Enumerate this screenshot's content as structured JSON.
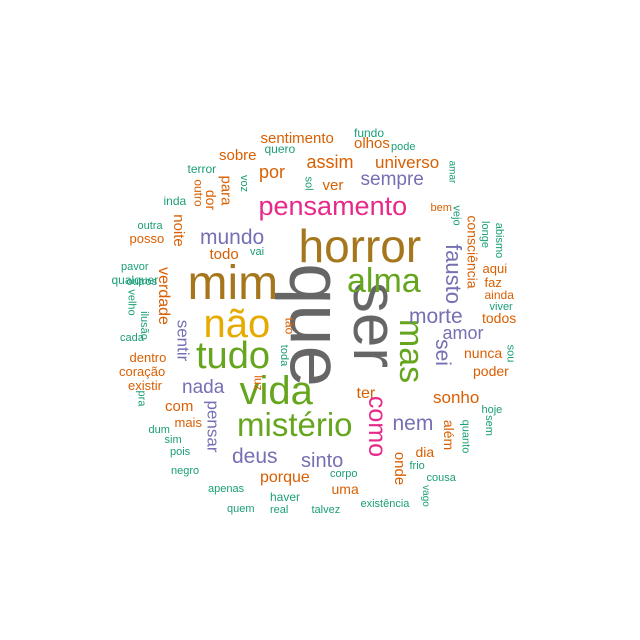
{
  "palette": {
    "teal": "#1b9e77",
    "orange": "#d95f02",
    "purple": "#7570b3",
    "magenta": "#e7298a",
    "green": "#66a61e",
    "gold": "#e6ab02",
    "brown": "#a6761d",
    "gray": "#666666"
  },
  "words": [
    {
      "text": "que",
      "color": "gray"
    },
    {
      "text": "ser",
      "color": "gray"
    },
    {
      "text": "horror",
      "color": "brown"
    },
    {
      "text": "mim",
      "color": "brown"
    },
    {
      "text": "não",
      "color": "gold"
    },
    {
      "text": "vida",
      "color": "green"
    },
    {
      "text": "tudo",
      "color": "green"
    },
    {
      "text": "alma",
      "color": "green"
    },
    {
      "text": "mistério",
      "color": "green"
    },
    {
      "text": "mas",
      "color": "green"
    },
    {
      "text": "pensamento",
      "color": "magenta"
    },
    {
      "text": "como",
      "color": "magenta"
    },
    {
      "text": "mundo",
      "color": "purple"
    },
    {
      "text": "fausto",
      "color": "purple"
    },
    {
      "text": "morte",
      "color": "purple"
    },
    {
      "text": "sei",
      "color": "purple"
    },
    {
      "text": "nada",
      "color": "purple"
    },
    {
      "text": "deus",
      "color": "purple"
    },
    {
      "text": "sinto",
      "color": "purple"
    },
    {
      "text": "nem",
      "color": "purple"
    },
    {
      "text": "sempre",
      "color": "purple"
    },
    {
      "text": "amor",
      "color": "purple"
    },
    {
      "text": "sentir",
      "color": "purple"
    },
    {
      "text": "pensar",
      "color": "purple"
    },
    {
      "text": "por",
      "color": "orange"
    },
    {
      "text": "assim",
      "color": "orange"
    },
    {
      "text": "universo",
      "color": "orange"
    },
    {
      "text": "sentimento",
      "color": "orange"
    },
    {
      "text": "olhos",
      "color": "orange"
    },
    {
      "text": "sobre",
      "color": "orange"
    },
    {
      "text": "ver",
      "color": "orange"
    },
    {
      "text": "para",
      "color": "orange"
    },
    {
      "text": "dor",
      "color": "orange"
    },
    {
      "text": "outro",
      "color": "orange"
    },
    {
      "text": "noite",
      "color": "orange"
    },
    {
      "text": "todo",
      "color": "orange"
    },
    {
      "text": "posso",
      "color": "orange"
    },
    {
      "text": "verdade",
      "color": "orange"
    },
    {
      "text": "dentro",
      "color": "orange"
    },
    {
      "text": "coração",
      "color": "orange"
    },
    {
      "text": "existir",
      "color": "orange"
    },
    {
      "text": "com",
      "color": "orange"
    },
    {
      "text": "mais",
      "color": "orange"
    },
    {
      "text": "luz",
      "color": "orange"
    },
    {
      "text": "tão",
      "color": "orange"
    },
    {
      "text": "ter",
      "color": "orange"
    },
    {
      "text": "sonho",
      "color": "orange"
    },
    {
      "text": "porque",
      "color": "orange"
    },
    {
      "text": "uma",
      "color": "orange"
    },
    {
      "text": "onde",
      "color": "orange"
    },
    {
      "text": "dia",
      "color": "orange"
    },
    {
      "text": "além",
      "color": "orange"
    },
    {
      "text": "nunca",
      "color": "orange"
    },
    {
      "text": "poder",
      "color": "orange"
    },
    {
      "text": "aqui",
      "color": "orange"
    },
    {
      "text": "faz",
      "color": "orange"
    },
    {
      "text": "ainda",
      "color": "orange"
    },
    {
      "text": "todos",
      "color": "orange"
    },
    {
      "text": "consciência",
      "color": "orange"
    },
    {
      "text": "bem",
      "color": "orange"
    },
    {
      "text": "fundo",
      "color": "teal"
    },
    {
      "text": "pode",
      "color": "teal"
    },
    {
      "text": "quero",
      "color": "teal"
    },
    {
      "text": "amar",
      "color": "teal"
    },
    {
      "text": "terror",
      "color": "teal"
    },
    {
      "text": "voz",
      "color": "teal"
    },
    {
      "text": "sol",
      "color": "teal"
    },
    {
      "text": "inda",
      "color": "teal"
    },
    {
      "text": "outra",
      "color": "teal"
    },
    {
      "text": "vai",
      "color": "teal"
    },
    {
      "text": "pavor",
      "color": "teal"
    },
    {
      "text": "outros",
      "color": "teal"
    },
    {
      "text": "qualquer",
      "color": "teal"
    },
    {
      "text": "velho",
      "color": "teal"
    },
    {
      "text": "ilusão",
      "color": "teal"
    },
    {
      "text": "cada",
      "color": "teal"
    },
    {
      "text": "toda",
      "color": "teal"
    },
    {
      "text": "pra",
      "color": "teal"
    },
    {
      "text": "dum",
      "color": "teal"
    },
    {
      "text": "sim",
      "color": "teal"
    },
    {
      "text": "pois",
      "color": "teal"
    },
    {
      "text": "negro",
      "color": "teal"
    },
    {
      "text": "apenas",
      "color": "teal"
    },
    {
      "text": "haver",
      "color": "teal"
    },
    {
      "text": "quem",
      "color": "teal"
    },
    {
      "text": "real",
      "color": "teal"
    },
    {
      "text": "talvez",
      "color": "teal"
    },
    {
      "text": "corpo",
      "color": "teal"
    },
    {
      "text": "existência",
      "color": "teal"
    },
    {
      "text": "frio",
      "color": "teal"
    },
    {
      "text": "cousa",
      "color": "teal"
    },
    {
      "text": "vago",
      "color": "teal"
    },
    {
      "text": "quanto",
      "color": "teal"
    },
    {
      "text": "sem",
      "color": "teal"
    },
    {
      "text": "hoje",
      "color": "teal"
    },
    {
      "text": "sou",
      "color": "teal"
    },
    {
      "text": "viver",
      "color": "teal"
    },
    {
      "text": "longe",
      "color": "teal"
    },
    {
      "text": "abismo",
      "color": "teal"
    },
    {
      "text": "vejo",
      "color": "teal"
    }
  ]
}
